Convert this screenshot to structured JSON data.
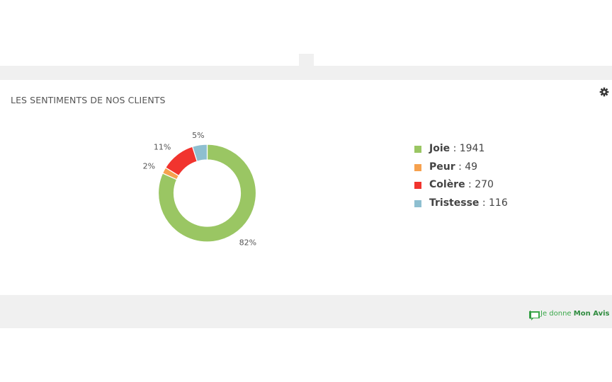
{
  "header": {
    "title": "LES SENTIMENTS DE NOS CLIENTS",
    "settings_icon": "gear-icon"
  },
  "colors": {
    "joie": "#9ac663",
    "peur": "#f6a14e",
    "colere": "#f1342e",
    "tristesse": "#8ebfd0",
    "band": "#f0f0f0",
    "brand": "#3aa84a"
  },
  "chart_data": {
    "type": "donut",
    "title": "LES SENTIMENTS DE NOS CLIENTS",
    "slices": [
      {
        "name": "Joie",
        "value": 1941,
        "label": "82%",
        "color": "#9ac663"
      },
      {
        "name": "Peur",
        "value": 49,
        "label": "2%",
        "color": "#f6a14e"
      },
      {
        "name": "Colère",
        "value": 270,
        "label": "11%",
        "color": "#f1342e"
      },
      {
        "name": "Tristesse",
        "value": 116,
        "label": "5%",
        "color": "#8ebfd0"
      }
    ],
    "legend_position": "right"
  },
  "legend": [
    {
      "name": "Joie",
      "value_text": " : 1941"
    },
    {
      "name": "Peur",
      "value_text": " : 49"
    },
    {
      "name": "Colère",
      "value_text": " : 270"
    },
    {
      "name": "Tristesse",
      "value_text": " : 116"
    }
  ],
  "footer": {
    "brand_prefix": "Je donne ",
    "brand_strong": "Mon Avis",
    "brand_icon": "speech-bubble-icon"
  }
}
